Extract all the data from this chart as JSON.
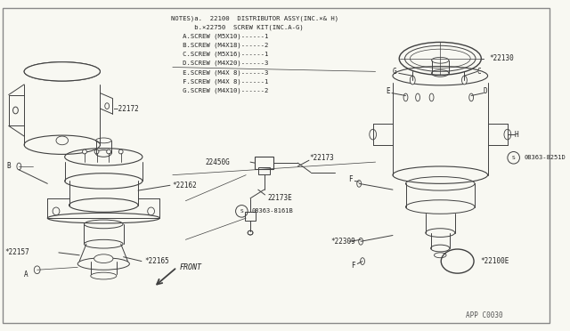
{
  "background_color": "#f8f8f2",
  "line_color": "#404040",
  "text_color": "#222222",
  "fig_width": 6.4,
  "fig_height": 3.72,
  "dpi": 100,
  "notes_text": [
    "NOTES)a.  22100  DISTRIBUTOR ASSY(INC.×& H)",
    "      b.×22750  SCREW KIT(INC.A-G)",
    "   A.SCREW (M5X10)------1",
    "   B.SCREW (M4X18)------2",
    "   C.SCREW (M5X16)------1",
    "   D.SCREW (M4X20)------3",
    "   E.SCREW (M4X 8)------3",
    "   F.SCREW (M4X 8)------1",
    "   G.SCREW (M4X10)------2"
  ],
  "app_label": "APP C0030"
}
